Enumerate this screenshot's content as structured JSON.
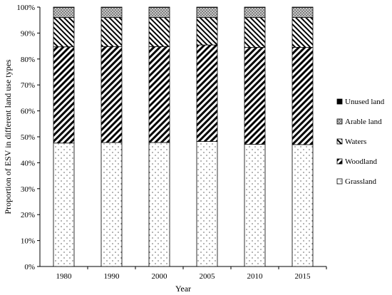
{
  "chart_data": {
    "type": "bar",
    "stacked": true,
    "percent": true,
    "xlabel": "Year",
    "ylabel": "Proportion of ESV in different land use types",
    "categories": [
      "1980",
      "1990",
      "2000",
      "2005",
      "2010",
      "2015"
    ],
    "ylim": [
      0,
      100
    ],
    "yticks": [
      "0%",
      "10%",
      "20%",
      "30%",
      "40%",
      "50%",
      "60%",
      "70%",
      "80%",
      "90%",
      "100%"
    ],
    "grid": false,
    "legend_position": "right",
    "series": [
      {
        "name": "Grassland",
        "pattern": "dots",
        "values": [
          47.6,
          47.8,
          47.8,
          48.2,
          47.1,
          47.0
        ]
      },
      {
        "name": "Woodland",
        "pattern": "thick-diagonal",
        "values": [
          37.1,
          37.0,
          37.0,
          37.2,
          37.4,
          37.5
        ]
      },
      {
        "name": "Waters",
        "pattern": "back-diagonal",
        "values": [
          11.3,
          11.2,
          11.2,
          10.6,
          11.5,
          11.5
        ]
      },
      {
        "name": "Arable land",
        "pattern": "crosshatch",
        "values": [
          3.9,
          3.9,
          3.9,
          3.9,
          3.9,
          3.9
        ]
      },
      {
        "name": "Unused land",
        "pattern": "solid-black",
        "values": [
          0.1,
          0.1,
          0.1,
          0.1,
          0.1,
          0.1
        ]
      }
    ]
  }
}
